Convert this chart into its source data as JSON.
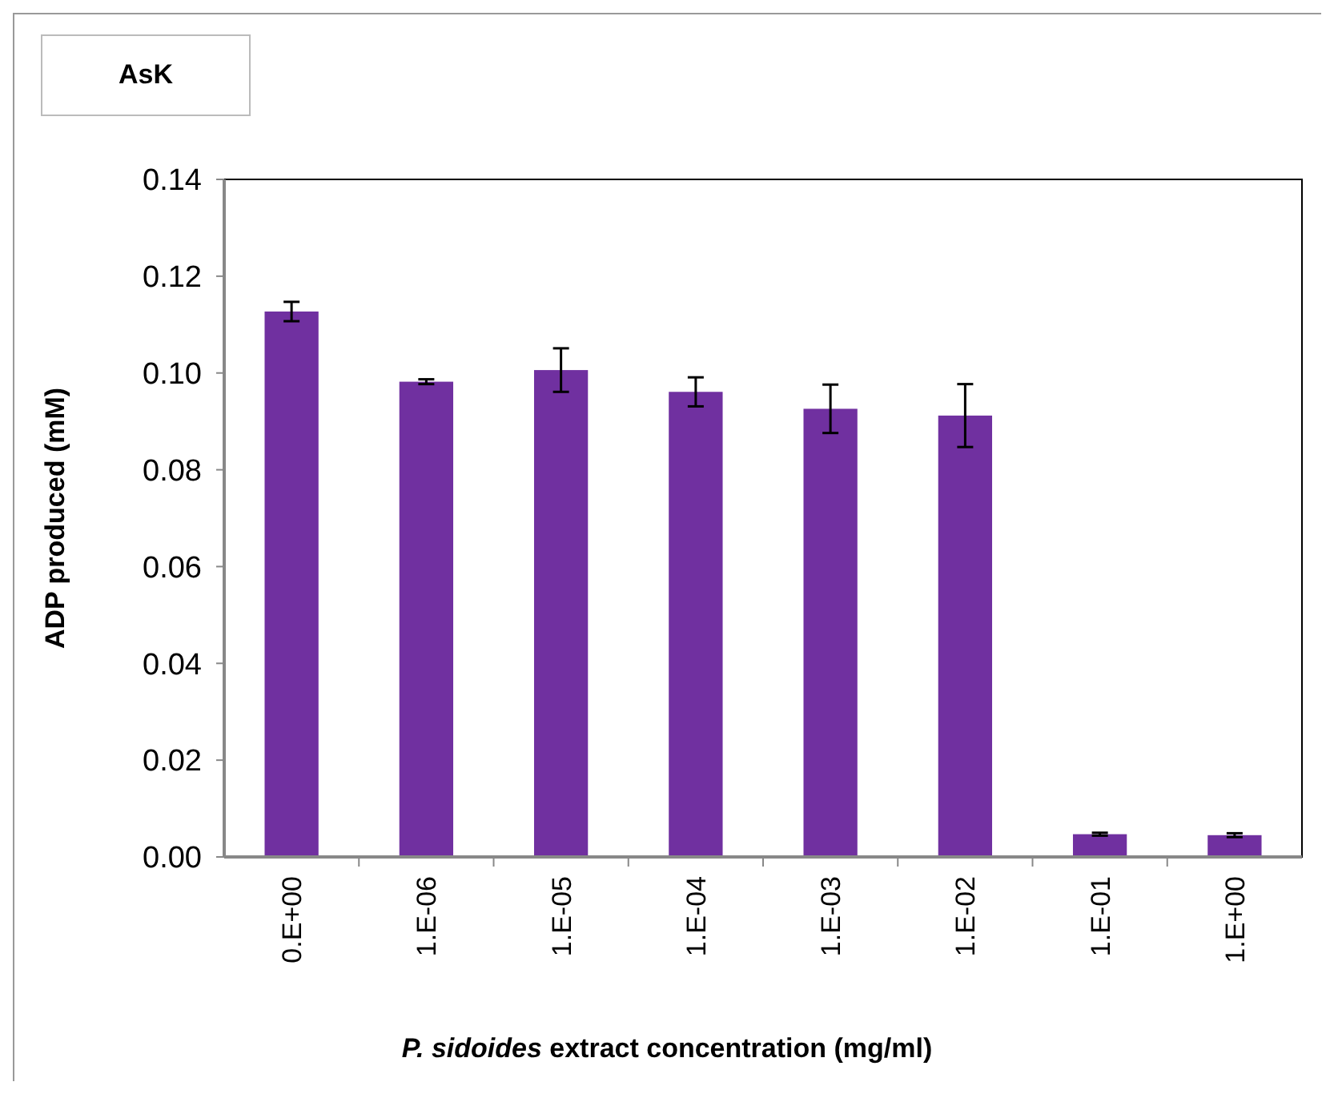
{
  "chart_data": {
    "type": "bar",
    "title": "AsK",
    "xlabel": "P. sidoides extract concentration (mg/ml)",
    "ylabel": "ADP produced (mM)",
    "categories": [
      "0.E+00",
      "1.E-06",
      "1.E-05",
      "1.E-04",
      "1.E-03",
      "1.E-02",
      "1.E-01",
      "1.E+00"
    ],
    "values": [
      0.1127,
      0.0982,
      0.1006,
      0.0961,
      0.0926,
      0.0912,
      0.0047,
      0.0045
    ],
    "errors": [
      0.002,
      0.0005,
      0.0045,
      0.003,
      0.005,
      0.0065,
      0.0003,
      0.0004
    ],
    "color": "#7030a0",
    "ylim": [
      0,
      0.14
    ],
    "yticks": [
      {
        "value": 0,
        "label": "0.00"
      },
      {
        "value": 0.02,
        "label": "0.02"
      },
      {
        "value": 0.04,
        "label": "0.04"
      },
      {
        "value": 0.06,
        "label": "0.06"
      },
      {
        "value": 0.08,
        "label": "0.08"
      },
      {
        "value": 0.1,
        "label": "0.10"
      },
      {
        "value": 0.12,
        "label": "0.12"
      },
      {
        "value": 0.14,
        "label": "0.14"
      }
    ],
    "grid": false
  }
}
